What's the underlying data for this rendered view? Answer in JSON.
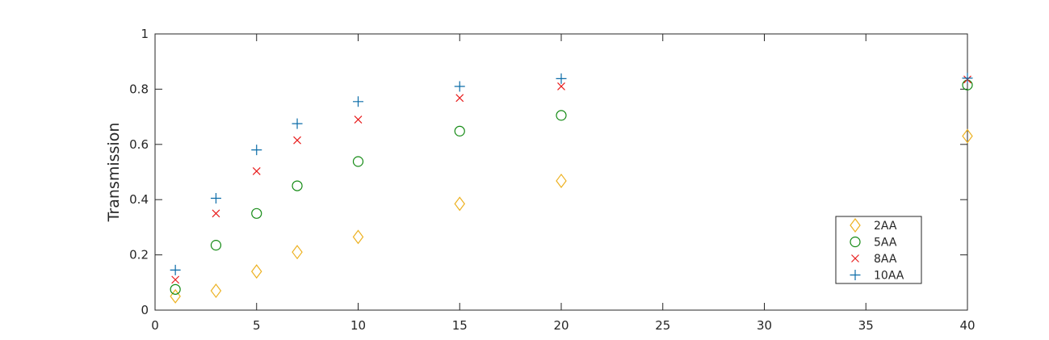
{
  "chart_data": {
    "type": "scatter",
    "title": "",
    "xlabel": "",
    "ylabel": "Transmission",
    "xlim": [
      0,
      40
    ],
    "ylim": [
      0,
      1
    ],
    "xticks": [
      0,
      5,
      10,
      15,
      20,
      25,
      30,
      35,
      40
    ],
    "yticks": [
      0,
      0.2,
      0.4,
      0.6,
      0.8,
      1
    ],
    "x_tick_labels": [
      "0",
      "5",
      "10",
      "15",
      "20",
      "25",
      "30",
      "35",
      "40"
    ],
    "y_tick_labels": [
      "0",
      "0.2",
      "0.4",
      "0.6",
      "0.8",
      "1"
    ],
    "grid": false,
    "legend_position": "bottom-right",
    "x": [
      1,
      3,
      5,
      7,
      10,
      15,
      20,
      40
    ],
    "series": [
      {
        "name": "2AA",
        "marker": "diamond",
        "color": "#EDB120",
        "values": [
          0.05,
          0.07,
          0.14,
          0.21,
          0.265,
          0.385,
          0.468,
          0.63
        ]
      },
      {
        "name": "5AA",
        "marker": "circle",
        "color": "#138A13",
        "values": [
          0.075,
          0.235,
          0.35,
          0.45,
          0.538,
          0.648,
          0.705,
          0.815
        ]
      },
      {
        "name": "8AA",
        "marker": "x",
        "color": "#E81C1C",
        "values": [
          0.11,
          0.35,
          0.503,
          0.615,
          0.69,
          0.768,
          0.81,
          0.835
        ]
      },
      {
        "name": "10AA",
        "marker": "plus",
        "color": "#0B6CA8",
        "values": [
          0.145,
          0.405,
          0.58,
          0.675,
          0.755,
          0.81,
          0.838,
          0.84
        ]
      }
    ]
  }
}
